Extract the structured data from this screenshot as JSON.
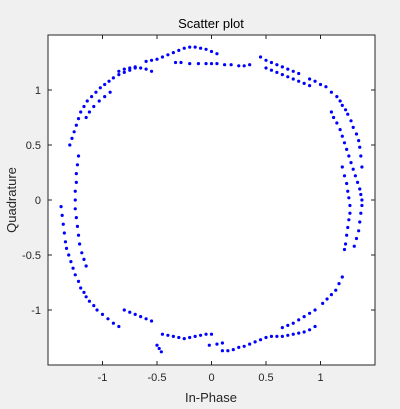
{
  "chart_data": {
    "type": "scatter",
    "title": "Scatter plot",
    "xlabel": "In-Phase",
    "ylabel": "Quadrature",
    "xlim": [
      -1.5,
      1.5
    ],
    "ylim": [
      -1.5,
      1.5
    ],
    "xticks": [
      -1,
      -0.5,
      0,
      0.5,
      1
    ],
    "yticks": [
      -1,
      -0.5,
      0,
      0.5,
      1
    ],
    "xtick_labels": [
      "-1",
      "-0.5",
      "0",
      "0.5",
      "1"
    ],
    "ytick_labels": [
      "-1",
      "-0.5",
      "0",
      "0.5",
      "1"
    ],
    "grid": false,
    "legend": "none",
    "marker_color": "#0000ff",
    "background": "#f0f0f0",
    "plot_background": "#ffffff",
    "series": [
      {
        "points": [
          [
            -0.55,
            1.17
          ],
          [
            -0.6,
            1.19
          ],
          [
            -0.65,
            1.2
          ],
          [
            -0.7,
            1.21
          ],
          [
            -0.75,
            1.2
          ],
          [
            -0.8,
            1.19
          ],
          [
            -0.85,
            1.17
          ],
          [
            -0.6,
            1.26
          ],
          [
            -0.55,
            1.27
          ],
          [
            -0.5,
            1.28
          ],
          [
            -0.45,
            1.3
          ],
          [
            -0.4,
            1.32
          ],
          [
            -0.35,
            1.34
          ],
          [
            -0.3,
            1.36
          ],
          [
            -0.25,
            1.38
          ],
          [
            -0.2,
            1.39
          ],
          [
            -0.15,
            1.39
          ],
          [
            -0.1,
            1.38
          ],
          [
            -0.05,
            1.37
          ],
          [
            0.0,
            1.35
          ],
          [
            0.05,
            1.33
          ],
          [
            -0.33,
            1.25
          ],
          [
            -0.28,
            1.25
          ],
          [
            -0.2,
            1.24
          ],
          [
            -0.12,
            1.24
          ],
          [
            -0.05,
            1.24
          ],
          [
            0.0,
            1.24
          ],
          [
            0.05,
            1.24
          ],
          [
            0.12,
            1.23
          ],
          [
            0.18,
            1.23
          ],
          [
            0.25,
            1.22
          ],
          [
            0.3,
            1.22
          ],
          [
            0.35,
            1.23
          ],
          [
            0.5,
            1.2
          ],
          [
            0.55,
            1.18
          ],
          [
            0.6,
            1.16
          ],
          [
            0.65,
            1.14
          ],
          [
            0.7,
            1.12
          ],
          [
            0.75,
            1.1
          ],
          [
            0.8,
            1.08
          ],
          [
            0.85,
            1.06
          ],
          [
            0.9,
            1.04
          ],
          [
            0.45,
            1.3
          ],
          [
            0.5,
            1.27
          ],
          [
            0.55,
            1.25
          ],
          [
            0.6,
            1.23
          ],
          [
            0.65,
            1.21
          ],
          [
            0.7,
            1.19
          ],
          [
            0.75,
            1.17
          ],
          [
            0.8,
            1.15
          ],
          [
            0.9,
            1.1
          ],
          [
            0.95,
            1.08
          ],
          [
            1.0,
            1.05
          ],
          [
            1.05,
            1.03
          ],
          [
            1.1,
            0.98
          ],
          [
            1.15,
            0.94
          ],
          [
            1.18,
            0.9
          ],
          [
            1.2,
            0.86
          ],
          [
            1.23,
            0.82
          ],
          [
            1.25,
            0.78
          ],
          [
            1.28,
            0.72
          ],
          [
            1.3,
            0.66
          ],
          [
            1.33,
            0.6
          ],
          [
            1.35,
            0.54
          ],
          [
            1.1,
            0.8
          ],
          [
            1.12,
            0.75
          ],
          [
            1.15,
            0.7
          ],
          [
            1.18,
            0.64
          ],
          [
            1.2,
            0.58
          ],
          [
            1.22,
            0.52
          ],
          [
            1.24,
            0.46
          ],
          [
            1.26,
            0.4
          ],
          [
            1.28,
            0.34
          ],
          [
            1.3,
            0.28
          ],
          [
            1.32,
            0.22
          ],
          [
            1.34,
            0.16
          ],
          [
            1.36,
            0.1
          ],
          [
            1.37,
            0.05
          ],
          [
            1.38,
            0.0
          ],
          [
            1.2,
            0.3
          ],
          [
            1.22,
            0.22
          ],
          [
            1.24,
            0.15
          ],
          [
            1.25,
            0.08
          ],
          [
            1.26,
            0.02
          ],
          [
            1.27,
            -0.05
          ],
          [
            1.27,
            -0.12
          ],
          [
            1.26,
            -0.18
          ],
          [
            1.25,
            -0.25
          ],
          [
            1.24,
            -0.32
          ],
          [
            1.23,
            -0.4
          ],
          [
            1.22,
            -0.45
          ],
          [
            1.38,
            -0.05
          ],
          [
            1.37,
            -0.12
          ],
          [
            1.36,
            -0.2
          ],
          [
            1.35,
            -0.28
          ],
          [
            1.33,
            -0.35
          ],
          [
            1.31,
            -0.42
          ],
          [
            1.2,
            -0.7
          ],
          [
            1.17,
            -0.76
          ],
          [
            1.14,
            -0.82
          ],
          [
            1.1,
            -0.86
          ],
          [
            1.06,
            -0.9
          ],
          [
            1.02,
            -0.94
          ],
          [
            0.95,
            -1.0
          ],
          [
            0.9,
            -1.03
          ],
          [
            0.85,
            -1.06
          ],
          [
            0.8,
            -1.09
          ],
          [
            0.75,
            -1.12
          ],
          [
            0.7,
            -1.14
          ],
          [
            0.65,
            -1.16
          ],
          [
            0.95,
            -1.15
          ],
          [
            0.9,
            -1.18
          ],
          [
            0.85,
            -1.2
          ],
          [
            0.8,
            -1.21
          ],
          [
            0.75,
            -1.22
          ],
          [
            0.7,
            -1.23
          ],
          [
            0.65,
            -1.24
          ],
          [
            0.6,
            -1.24
          ],
          [
            0.55,
            -1.24
          ],
          [
            0.5,
            -1.25
          ],
          [
            0.45,
            -1.27
          ],
          [
            0.4,
            -1.29
          ],
          [
            0.35,
            -1.31
          ],
          [
            0.3,
            -1.33
          ],
          [
            0.25,
            -1.34
          ],
          [
            0.2,
            -1.36
          ],
          [
            0.15,
            -1.37
          ],
          [
            0.1,
            -1.37
          ],
          [
            0.0,
            -1.22
          ],
          [
            -0.05,
            -1.22
          ],
          [
            -0.1,
            -1.23
          ],
          [
            -0.15,
            -1.24
          ],
          [
            -0.2,
            -1.25
          ],
          [
            -0.25,
            -1.26
          ],
          [
            -0.3,
            -1.25
          ],
          [
            -0.35,
            -1.24
          ],
          [
            -0.4,
            -1.23
          ],
          [
            -0.45,
            -1.22
          ],
          [
            0.1,
            -1.3
          ],
          [
            0.05,
            -1.31
          ],
          [
            -0.02,
            -1.32
          ],
          [
            -0.5,
            -1.32
          ],
          [
            -0.48,
            -1.35
          ],
          [
            -0.46,
            -1.38
          ],
          [
            -0.55,
            -1.1
          ],
          [
            -0.6,
            -1.08
          ],
          [
            -0.65,
            -1.06
          ],
          [
            -0.7,
            -1.04
          ],
          [
            -0.75,
            -1.02
          ],
          [
            -0.8,
            -1.0
          ],
          [
            -0.85,
            -1.15
          ],
          [
            -0.9,
            -1.12
          ],
          [
            -0.95,
            -1.08
          ],
          [
            -1.0,
            -1.04
          ],
          [
            -1.05,
            -1.0
          ],
          [
            -1.08,
            -0.96
          ],
          [
            -1.12,
            -0.92
          ],
          [
            -1.15,
            -0.88
          ],
          [
            -1.17,
            -0.84
          ],
          [
            -1.2,
            -0.8
          ],
          [
            -1.22,
            -0.74
          ],
          [
            -1.25,
            -0.68
          ],
          [
            -1.27,
            -0.62
          ],
          [
            -1.29,
            -0.56
          ],
          [
            -1.31,
            -0.5
          ],
          [
            -1.33,
            -0.44
          ],
          [
            -1.34,
            -0.38
          ],
          [
            -1.35,
            -0.3
          ],
          [
            -1.36,
            -0.22
          ],
          [
            -1.37,
            -0.14
          ],
          [
            -1.38,
            -0.06
          ],
          [
            -1.15,
            -0.6
          ],
          [
            -1.17,
            -0.54
          ],
          [
            -1.19,
            -0.48
          ],
          [
            -1.21,
            -0.4
          ],
          [
            -1.22,
            -0.32
          ],
          [
            -1.23,
            -0.24
          ],
          [
            -1.24,
            -0.16
          ],
          [
            -1.25,
            -0.08
          ],
          [
            -1.25,
            0.0
          ],
          [
            -1.25,
            0.08
          ],
          [
            -1.24,
            0.16
          ],
          [
            -1.24,
            0.24
          ],
          [
            -1.23,
            0.32
          ],
          [
            -1.22,
            0.4
          ],
          [
            -1.3,
            0.5
          ],
          [
            -1.28,
            0.56
          ],
          [
            -1.26,
            0.62
          ],
          [
            -1.24,
            0.68
          ],
          [
            -1.22,
            0.74
          ],
          [
            -1.2,
            0.8
          ],
          [
            -1.17,
            0.85
          ],
          [
            -1.14,
            0.9
          ],
          [
            -1.1,
            0.94
          ],
          [
            -1.06,
            0.98
          ],
          [
            -1.02,
            1.02
          ],
          [
            -0.98,
            1.05
          ],
          [
            -0.94,
            1.08
          ],
          [
            -0.9,
            1.11
          ],
          [
            -0.85,
            1.14
          ],
          [
            -0.8,
            1.16
          ],
          [
            -0.75,
            1.18
          ],
          [
            -0.7,
            1.2
          ],
          [
            -1.15,
            0.75
          ],
          [
            -1.12,
            0.8
          ],
          [
            -1.08,
            0.85
          ],
          [
            -1.03,
            0.9
          ],
          [
            -0.98,
            0.94
          ],
          [
            -0.93,
            0.98
          ],
          [
            1.38,
            0.3
          ],
          [
            1.37,
            0.4
          ],
          [
            1.36,
            0.48
          ]
        ]
      }
    ]
  }
}
